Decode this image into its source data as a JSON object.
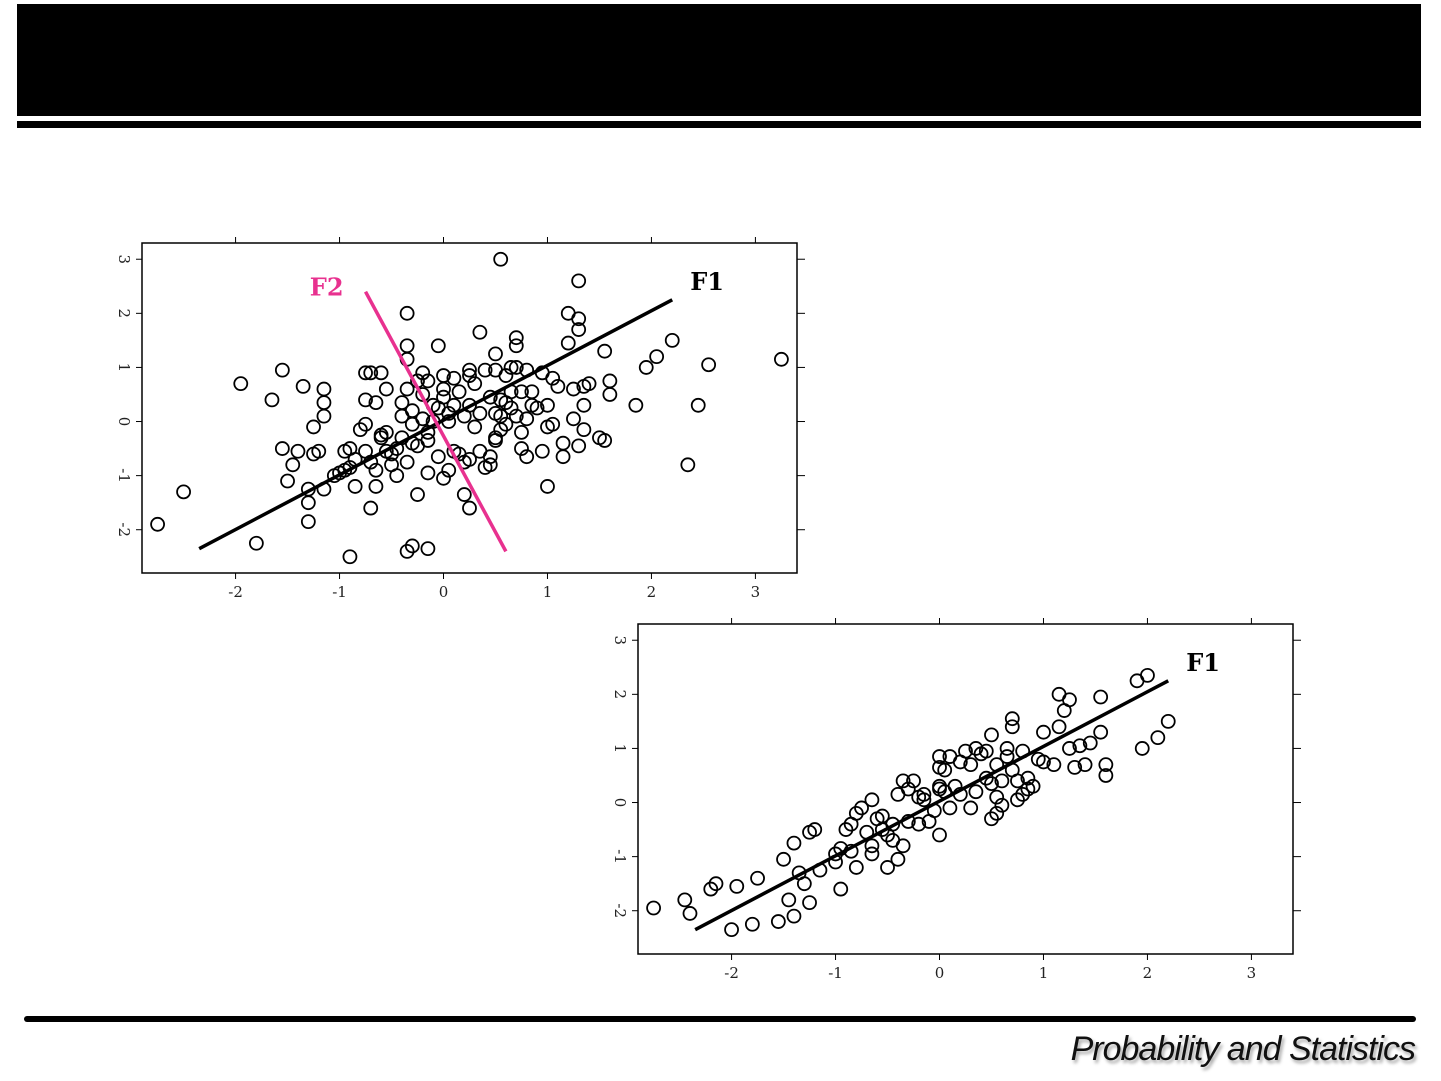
{
  "footer": {
    "text": "Probability and Statistics"
  },
  "colors": {
    "f2": "#e8318f",
    "line": "#000000"
  },
  "chart_data": [
    {
      "type": "scatter",
      "title": "",
      "xlim": [
        -2.9,
        3.4
      ],
      "ylim": [
        -2.8,
        3.3
      ],
      "xticks": [
        "-2",
        "-1",
        "0",
        "1",
        "2",
        "3"
      ],
      "yticks": [
        "-2",
        "-1",
        "0",
        "1",
        "2",
        "3"
      ],
      "grid": false,
      "lines": [
        {
          "label": "F1",
          "color": "#000000",
          "x": [
            -2.35,
            2.2
          ],
          "y": [
            -2.35,
            2.25
          ]
        },
        {
          "label": "F2",
          "color": "#e8318f",
          "x": [
            -0.75,
            0.6
          ],
          "y": [
            2.4,
            -2.4
          ]
        }
      ],
      "points": [
        [
          -2.75,
          -1.9
        ],
        [
          -2.5,
          -1.3
        ],
        [
          -1.95,
          0.7
        ],
        [
          -1.8,
          -2.25
        ],
        [
          -1.65,
          0.4
        ],
        [
          -1.55,
          0.95
        ],
        [
          -1.5,
          -1.1
        ],
        [
          -1.55,
          -0.5
        ],
        [
          -1.4,
          -0.55
        ],
        [
          -1.45,
          -0.8
        ],
        [
          -1.35,
          0.65
        ],
        [
          -1.3,
          -1.25
        ],
        [
          -1.3,
          -1.5
        ],
        [
          -1.3,
          -1.85
        ],
        [
          -1.25,
          -0.1
        ],
        [
          -1.25,
          -0.6
        ],
        [
          -1.2,
          -0.55
        ],
        [
          -1.15,
          -1.25
        ],
        [
          -1.15,
          0.1
        ],
        [
          -1.15,
          0.35
        ],
        [
          -1.15,
          0.6
        ],
        [
          -1.05,
          -1.0
        ],
        [
          -1.0,
          -0.95
        ],
        [
          -0.95,
          -0.9
        ],
        [
          -0.95,
          -0.55
        ],
        [
          -0.9,
          -0.5
        ],
        [
          -0.9,
          -0.85
        ],
        [
          -0.9,
          -2.5
        ],
        [
          -0.85,
          -1.2
        ],
        [
          -0.85,
          -0.7
        ],
        [
          -0.8,
          -0.15
        ],
        [
          -0.75,
          -0.05
        ],
        [
          -0.75,
          0.4
        ],
        [
          -0.75,
          0.9
        ],
        [
          -0.7,
          0.9
        ],
        [
          -0.75,
          -0.55
        ],
        [
          -0.7,
          -0.75
        ],
        [
          -0.7,
          -1.6
        ],
        [
          -0.65,
          -0.9
        ],
        [
          -0.65,
          -1.2
        ],
        [
          -0.65,
          0.35
        ],
        [
          -0.6,
          0.9
        ],
        [
          -0.6,
          -0.25
        ],
        [
          -0.6,
          -0.3
        ],
        [
          -0.55,
          -0.2
        ],
        [
          -0.55,
          0.6
        ],
        [
          -0.55,
          -0.55
        ],
        [
          -0.5,
          -0.6
        ],
        [
          -0.5,
          -0.8
        ],
        [
          -0.45,
          -1.0
        ],
        [
          -0.45,
          -0.5
        ],
        [
          -0.4,
          0.1
        ],
        [
          -0.4,
          0.35
        ],
        [
          -0.4,
          -0.3
        ],
        [
          -0.35,
          0.6
        ],
        [
          -0.35,
          -0.75
        ],
        [
          -0.35,
          1.15
        ],
        [
          -0.35,
          1.4
        ],
        [
          -0.35,
          2.0
        ],
        [
          -0.35,
          -2.4
        ],
        [
          -0.3,
          0.2
        ],
        [
          -0.3,
          -0.4
        ],
        [
          -0.3,
          -0.05
        ],
        [
          -0.3,
          -2.3
        ],
        [
          -0.25,
          -0.45
        ],
        [
          -0.25,
          0.75
        ],
        [
          -0.25,
          -1.35
        ],
        [
          -0.2,
          0.9
        ],
        [
          -0.2,
          0.5
        ],
        [
          -0.2,
          0.05
        ],
        [
          -0.15,
          -0.35
        ],
        [
          -0.15,
          0.75
        ],
        [
          -0.15,
          -0.2
        ],
        [
          -0.15,
          -0.95
        ],
        [
          -0.15,
          -2.35
        ],
        [
          -0.1,
          0.0
        ],
        [
          -0.1,
          0.3
        ],
        [
          -0.05,
          -0.65
        ],
        [
          -0.05,
          1.4
        ],
        [
          -0.05,
          0.25
        ],
        [
          0.0,
          0.85
        ],
        [
          0.0,
          0.6
        ],
        [
          0.0,
          0.45
        ],
        [
          0.0,
          -1.05
        ],
        [
          0.05,
          0.15
        ],
        [
          0.05,
          -0.9
        ],
        [
          0.05,
          0.0
        ],
        [
          0.1,
          -0.55
        ],
        [
          0.1,
          0.8
        ],
        [
          0.1,
          0.3
        ],
        [
          0.15,
          -0.6
        ],
        [
          0.15,
          0.55
        ],
        [
          0.2,
          -1.35
        ],
        [
          0.2,
          -0.75
        ],
        [
          0.2,
          0.1
        ],
        [
          0.25,
          0.85
        ],
        [
          0.25,
          -0.7
        ],
        [
          0.25,
          0.3
        ],
        [
          0.25,
          -1.6
        ],
        [
          0.25,
          0.95
        ],
        [
          0.3,
          -0.1
        ],
        [
          0.3,
          0.7
        ],
        [
          0.35,
          0.15
        ],
        [
          0.35,
          -0.55
        ],
        [
          0.35,
          1.65
        ],
        [
          0.4,
          0.95
        ],
        [
          0.4,
          -0.85
        ],
        [
          0.45,
          0.45
        ],
        [
          0.45,
          -0.65
        ],
        [
          0.45,
          -0.8
        ],
        [
          0.5,
          0.15
        ],
        [
          0.5,
          -0.3
        ],
        [
          0.5,
          1.25
        ],
        [
          0.5,
          0.95
        ],
        [
          0.5,
          -0.35
        ],
        [
          0.55,
          3.0
        ],
        [
          0.55,
          0.1
        ],
        [
          0.55,
          0.4
        ],
        [
          0.55,
          -0.15
        ],
        [
          0.6,
          0.35
        ],
        [
          0.6,
          -0.05
        ],
        [
          0.6,
          0.85
        ],
        [
          0.65,
          0.55
        ],
        [
          0.65,
          1.0
        ],
        [
          0.65,
          0.25
        ],
        [
          0.7,
          1.55
        ],
        [
          0.7,
          1.4
        ],
        [
          0.7,
          1.0
        ],
        [
          0.7,
          0.1
        ],
        [
          0.75,
          -0.5
        ],
        [
          0.75,
          -0.2
        ],
        [
          0.75,
          0.55
        ],
        [
          0.8,
          0.05
        ],
        [
          0.8,
          0.95
        ],
        [
          0.8,
          -0.65
        ],
        [
          0.85,
          0.3
        ],
        [
          0.85,
          0.55
        ],
        [
          0.9,
          0.25
        ],
        [
          0.95,
          -0.55
        ],
        [
          0.95,
          0.9
        ],
        [
          1.0,
          0.3
        ],
        [
          1.0,
          -0.1
        ],
        [
          1.0,
          -1.2
        ],
        [
          1.05,
          0.8
        ],
        [
          1.05,
          -0.05
        ],
        [
          1.1,
          0.65
        ],
        [
          1.15,
          -0.4
        ],
        [
          1.15,
          -0.65
        ],
        [
          1.2,
          2.0
        ],
        [
          1.2,
          1.45
        ],
        [
          1.25,
          0.6
        ],
        [
          1.25,
          0.05
        ],
        [
          1.3,
          1.7
        ],
        [
          1.3,
          1.9
        ],
        [
          1.3,
          2.6
        ],
        [
          1.3,
          -0.45
        ],
        [
          1.35,
          0.65
        ],
        [
          1.35,
          0.3
        ],
        [
          1.35,
          -0.15
        ],
        [
          1.4,
          0.7
        ],
        [
          1.5,
          -0.3
        ],
        [
          1.55,
          -0.35
        ],
        [
          1.55,
          1.3
        ],
        [
          1.6,
          0.75
        ],
        [
          1.6,
          0.5
        ],
        [
          1.85,
          0.3
        ],
        [
          1.95,
          1.0
        ],
        [
          2.05,
          1.2
        ],
        [
          2.2,
          1.5
        ],
        [
          2.35,
          -0.8
        ],
        [
          2.45,
          0.3
        ],
        [
          2.55,
          1.05
        ],
        [
          3.25,
          1.15
        ]
      ]
    },
    {
      "type": "scatter",
      "title": "",
      "xlim": [
        -2.9,
        3.4
      ],
      "ylim": [
        -2.8,
        3.3
      ],
      "xticks": [
        "-2",
        "-1",
        "0",
        "1",
        "2",
        "3"
      ],
      "yticks": [
        "-2",
        "-1",
        "0",
        "1",
        "2",
        "3"
      ],
      "grid": false,
      "lines": [
        {
          "label": "F1",
          "color": "#000000",
          "x": [
            -2.35,
            2.2
          ],
          "y": [
            -2.35,
            2.25
          ]
        }
      ],
      "points": [
        [
          -2.75,
          -1.95
        ],
        [
          -2.45,
          -1.8
        ],
        [
          -2.4,
          -2.05
        ],
        [
          -2.2,
          -1.6
        ],
        [
          -2.15,
          -1.5
        ],
        [
          -2.0,
          -2.35
        ],
        [
          -1.95,
          -1.55
        ],
        [
          -1.8,
          -2.25
        ],
        [
          -1.75,
          -1.4
        ],
        [
          -1.55,
          -2.2
        ],
        [
          -1.5,
          -1.05
        ],
        [
          -1.45,
          -1.8
        ],
        [
          -1.4,
          -0.75
        ],
        [
          -1.4,
          -2.1
        ],
        [
          -1.35,
          -1.3
        ],
        [
          -1.3,
          -1.5
        ],
        [
          -1.25,
          -1.85
        ],
        [
          -1.25,
          -0.55
        ],
        [
          -1.2,
          -0.5
        ],
        [
          -1.15,
          -1.25
        ],
        [
          -1.0,
          -0.95
        ],
        [
          -1.0,
          -1.1
        ],
        [
          -0.95,
          -1.6
        ],
        [
          -0.95,
          -0.85
        ],
        [
          -0.9,
          -0.5
        ],
        [
          -0.85,
          -0.4
        ],
        [
          -0.85,
          -0.9
        ],
        [
          -0.8,
          -1.2
        ],
        [
          -0.8,
          -0.2
        ],
        [
          -0.75,
          -0.1
        ],
        [
          -0.7,
          -0.55
        ],
        [
          -0.65,
          -0.8
        ],
        [
          -0.65,
          -0.95
        ],
        [
          -0.65,
          0.05
        ],
        [
          -0.6,
          -0.3
        ],
        [
          -0.55,
          -0.25
        ],
        [
          -0.55,
          -0.5
        ],
        [
          -0.5,
          -1.2
        ],
        [
          -0.5,
          -0.6
        ],
        [
          -0.45,
          -0.4
        ],
        [
          -0.45,
          -0.7
        ],
        [
          -0.4,
          -1.05
        ],
        [
          -0.4,
          0.15
        ],
        [
          -0.35,
          0.4
        ],
        [
          -0.35,
          -0.8
        ],
        [
          -0.3,
          -0.35
        ],
        [
          -0.3,
          0.25
        ],
        [
          -0.25,
          0.4
        ],
        [
          -0.2,
          -0.4
        ],
        [
          -0.2,
          0.1
        ],
        [
          -0.15,
          0.15
        ],
        [
          -0.15,
          0.05
        ],
        [
          -0.1,
          -0.35
        ],
        [
          -0.05,
          -0.15
        ],
        [
          0.0,
          0.25
        ],
        [
          0.0,
          0.3
        ],
        [
          0.0,
          -0.6
        ],
        [
          0.0,
          0.85
        ],
        [
          0.0,
          0.65
        ],
        [
          0.05,
          0.2
        ],
        [
          0.05,
          0.6
        ],
        [
          0.1,
          -0.1
        ],
        [
          0.1,
          0.85
        ],
        [
          0.15,
          0.3
        ],
        [
          0.2,
          0.75
        ],
        [
          0.2,
          0.15
        ],
        [
          0.25,
          0.95
        ],
        [
          0.3,
          0.7
        ],
        [
          0.3,
          -0.1
        ],
        [
          0.35,
          0.2
        ],
        [
          0.35,
          1.0
        ],
        [
          0.4,
          0.9
        ],
        [
          0.45,
          0.45
        ],
        [
          0.45,
          0.95
        ],
        [
          0.5,
          1.25
        ],
        [
          0.5,
          0.35
        ],
        [
          0.5,
          -0.3
        ],
        [
          0.55,
          -0.2
        ],
        [
          0.55,
          0.1
        ],
        [
          0.55,
          0.7
        ],
        [
          0.6,
          -0.05
        ],
        [
          0.6,
          0.4
        ],
        [
          0.65,
          0.85
        ],
        [
          0.65,
          1.0
        ],
        [
          0.7,
          1.4
        ],
        [
          0.7,
          1.55
        ],
        [
          0.7,
          0.6
        ],
        [
          0.75,
          0.05
        ],
        [
          0.75,
          0.4
        ],
        [
          0.8,
          0.95
        ],
        [
          0.8,
          0.15
        ],
        [
          0.85,
          0.25
        ],
        [
          0.85,
          0.45
        ],
        [
          0.9,
          0.3
        ],
        [
          0.95,
          0.8
        ],
        [
          1.0,
          0.75
        ],
        [
          1.0,
          1.3
        ],
        [
          1.1,
          0.7
        ],
        [
          1.15,
          1.4
        ],
        [
          1.15,
          2.0
        ],
        [
          1.2,
          1.7
        ],
        [
          1.25,
          1.9
        ],
        [
          1.25,
          1.0
        ],
        [
          1.3,
          0.65
        ],
        [
          1.35,
          1.05
        ],
        [
          1.4,
          0.7
        ],
        [
          1.45,
          1.1
        ],
        [
          1.55,
          1.3
        ],
        [
          1.55,
          1.95
        ],
        [
          1.6,
          0.7
        ],
        [
          1.6,
          0.5
        ],
        [
          1.9,
          2.25
        ],
        [
          1.95,
          1.0
        ],
        [
          2.0,
          2.35
        ],
        [
          2.1,
          1.2
        ],
        [
          2.2,
          1.5
        ]
      ]
    }
  ]
}
